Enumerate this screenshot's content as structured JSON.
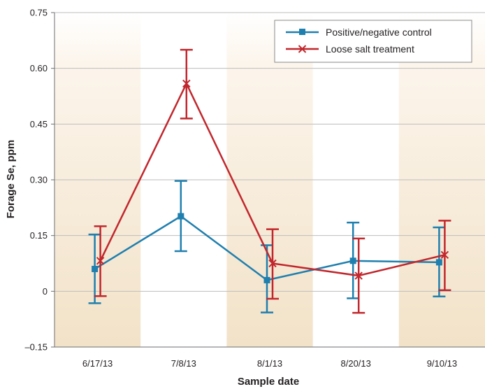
{
  "chart_data": {
    "type": "line",
    "title": "",
    "xlabel": "Sample date",
    "ylabel": "Forage Se, ppm",
    "categories": [
      "6/17/13",
      "7/8/13",
      "8/1/13",
      "8/20/13",
      "9/10/13"
    ],
    "ylim": [
      -0.15,
      0.75
    ],
    "yticks": [
      -0.15,
      0,
      0.15,
      0.3,
      0.45,
      0.6,
      0.75
    ],
    "ytick_labels": [
      "–0.15",
      "0",
      "0.15",
      "0.30",
      "0.45",
      "0.60",
      "0.75"
    ],
    "grid": "horizontal",
    "shaded_categories": [
      0,
      2,
      4
    ],
    "legend_position": "top-right",
    "series": [
      {
        "name": "Positive/negative control",
        "color": "#1f7fae",
        "marker": "square",
        "values": [
          0.06,
          0.202,
          0.03,
          0.082,
          0.078
        ],
        "err_high": [
          0.153,
          0.297,
          0.124,
          0.185,
          0.172
        ],
        "err_low": [
          -0.032,
          0.108,
          -0.057,
          -0.019,
          -0.014
        ]
      },
      {
        "name": "Loose salt treatment",
        "color": "#c1272d",
        "marker": "x",
        "values": [
          0.082,
          0.559,
          0.075,
          0.042,
          0.098
        ],
        "err_high": [
          0.175,
          0.65,
          0.167,
          0.142,
          0.19
        ],
        "err_low": [
          -0.013,
          0.465,
          -0.02,
          -0.058,
          0.003
        ]
      }
    ]
  }
}
